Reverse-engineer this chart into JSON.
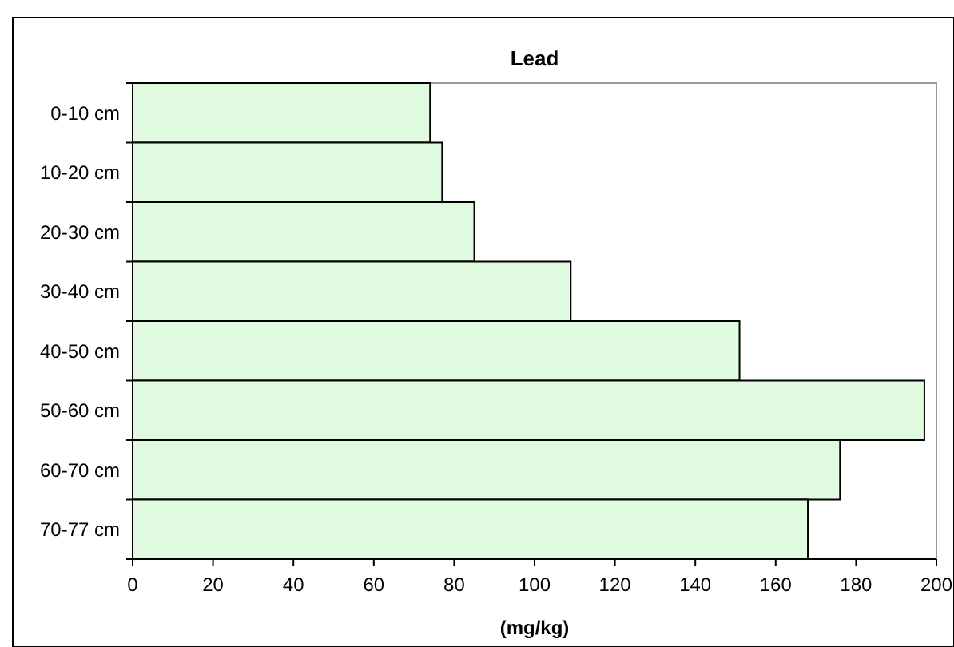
{
  "chart_data": {
    "type": "bar",
    "orientation": "horizontal",
    "title": "Lead",
    "xlabel": "(mg/kg)",
    "categories": [
      "0-10 cm",
      "10-20 cm",
      "20-30 cm",
      "30-40 cm",
      "40-50 cm",
      "50-60 cm",
      "60-70 cm",
      "70-77 cm"
    ],
    "values": [
      74,
      77,
      85,
      109,
      151,
      197,
      176,
      168
    ],
    "color": "#e0fae0",
    "xlim": [
      0,
      200
    ],
    "xticks": [
      0,
      20,
      40,
      60,
      80,
      100,
      120,
      140,
      160,
      180,
      200
    ],
    "grid": false
  }
}
